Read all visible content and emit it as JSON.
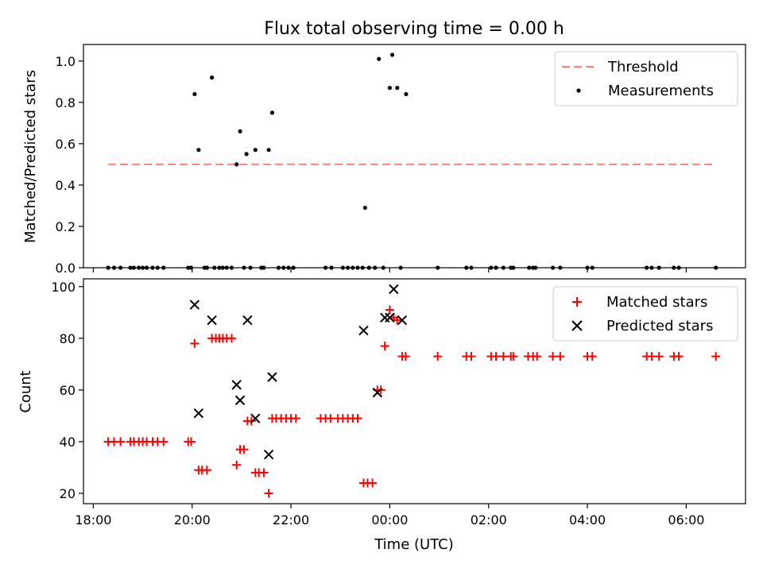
{
  "chart_data": [
    {
      "type": "scatter",
      "title": "Flux total observing time = 0.00 h",
      "xlabel": "",
      "ylabel": "Matched/Predicted stars",
      "ylim": [
        0,
        1.08
      ],
      "yticks": [
        "0.0",
        "0.2",
        "0.4",
        "0.6",
        "0.8",
        "1.0"
      ],
      "ytick_values": [
        0,
        0.2,
        0.4,
        0.6,
        0.8,
        1.0
      ],
      "legend_position": "top-right",
      "threshold": {
        "name": "Threshold",
        "x": [
          18.3,
          6.6
        ],
        "y": 0.5,
        "color": "#ff7f7f",
        "style": "dashed"
      },
      "series": [
        {
          "name": "Measurements",
          "color": "#000000",
          "marker": "dot",
          "x": [
            18.3,
            18.42,
            18.55,
            18.75,
            18.82,
            18.92,
            19.0,
            19.08,
            19.2,
            19.3,
            19.42,
            19.92,
            19.98,
            20.05,
            20.13,
            20.25,
            20.3,
            20.4,
            20.45,
            20.55,
            20.62,
            20.7,
            20.8,
            20.9,
            20.97,
            21.05,
            21.1,
            21.18,
            21.28,
            21.4,
            21.45,
            21.55,
            21.62,
            21.75,
            21.85,
            21.95,
            22.05,
            22.7,
            22.82,
            23.05,
            23.15,
            23.25,
            23.35,
            23.45,
            23.5,
            23.58,
            23.7,
            23.78,
            23.87,
            24.0,
            24.05,
            24.15,
            24.22,
            24.33,
            24.97,
            25.55,
            25.65,
            26.05,
            26.15,
            26.3,
            26.45,
            26.5,
            26.82,
            26.9,
            26.95,
            27.3,
            27.45,
            28.0,
            28.1,
            29.2,
            29.3,
            29.45,
            29.75,
            29.85,
            30.6
          ],
          "y": [
            0,
            0,
            0,
            0,
            0,
            0,
            0,
            0,
            0,
            0,
            0,
            0,
            0,
            0.84,
            0.57,
            0,
            0,
            0.92,
            0,
            0,
            0,
            0,
            0,
            0.5,
            0.66,
            0,
            0.55,
            0,
            0.57,
            0,
            0,
            0.57,
            0.75,
            0,
            0,
            0,
            0,
            0,
            0,
            0,
            0,
            0,
            0,
            0,
            0.29,
            0,
            0,
            1.01,
            0,
            0.87,
            1.03,
            0.87,
            0,
            0.84,
            0,
            0,
            0,
            0,
            0,
            0,
            0,
            0,
            0,
            0,
            0,
            0,
            0,
            0,
            0,
            0,
            0,
            0,
            0,
            0,
            0
          ]
        }
      ]
    },
    {
      "type": "scatter",
      "xlabel": "Time (UTC)",
      "ylabel": "Count",
      "ylim": [
        16,
        103
      ],
      "yticks": [
        "20",
        "40",
        "60",
        "80",
        "100"
      ],
      "ytick_values": [
        20,
        40,
        60,
        80,
        100
      ],
      "xlim": [
        17.8,
        31.2
      ],
      "xticks": [
        "18:00",
        "20:00",
        "22:00",
        "00:00",
        "02:00",
        "04:00",
        "06:00"
      ],
      "xtick_values": [
        18,
        20,
        22,
        24,
        26,
        28,
        30
      ],
      "legend_position": "top-right",
      "series": [
        {
          "name": "Matched stars",
          "color": "#ff0000",
          "marker": "plus",
          "x": [
            18.3,
            18.42,
            18.55,
            18.75,
            18.82,
            18.92,
            19.0,
            19.08,
            19.2,
            19.3,
            19.42,
            19.92,
            19.98,
            20.05,
            20.13,
            20.2,
            20.3,
            20.4,
            20.48,
            20.55,
            20.62,
            20.7,
            20.8,
            20.9,
            20.97,
            21.05,
            21.12,
            21.2,
            21.28,
            21.35,
            21.45,
            21.55,
            21.62,
            21.7,
            21.8,
            21.9,
            22.0,
            22.1,
            22.6,
            22.7,
            22.8,
            22.95,
            23.05,
            23.15,
            23.25,
            23.35,
            23.47,
            23.55,
            23.65,
            23.75,
            23.82,
            23.9,
            24.0,
            24.08,
            24.15,
            24.25,
            24.32,
            24.97,
            25.55,
            25.65,
            26.05,
            26.15,
            26.3,
            26.45,
            26.5,
            26.8,
            26.9,
            26.98,
            27.3,
            27.45,
            28.0,
            28.1,
            29.2,
            29.3,
            29.45,
            29.75,
            29.85,
            30.6
          ],
          "y": [
            40,
            40,
            40,
            40,
            40,
            40,
            40,
            40,
            40,
            40,
            40,
            40,
            40,
            78,
            29,
            29,
            29,
            80,
            80,
            80,
            80,
            80,
            80,
            31,
            37,
            37,
            48,
            48,
            28,
            28,
            28,
            20,
            49,
            49,
            49,
            49,
            49,
            49,
            49,
            49,
            49,
            49,
            49,
            49,
            49,
            49,
            24,
            24,
            24,
            60,
            60,
            77,
            91,
            88,
            87,
            73,
            73,
            73,
            73,
            73,
            73,
            73,
            73,
            73,
            73,
            73,
            73,
            73,
            73,
            73,
            73,
            73,
            73,
            73,
            73,
            73,
            73,
            73
          ]
        },
        {
          "name": "Predicted stars",
          "color": "#000000",
          "marker": "x",
          "x": [
            20.05,
            20.13,
            20.4,
            20.9,
            20.97,
            21.12,
            21.28,
            21.55,
            21.62,
            23.47,
            23.75,
            23.9,
            24.0,
            24.08,
            24.25
          ],
          "y": [
            93,
            51,
            87,
            62,
            56,
            87,
            49,
            35,
            65,
            83,
            59,
            88,
            88,
            99,
            87
          ]
        }
      ]
    }
  ]
}
